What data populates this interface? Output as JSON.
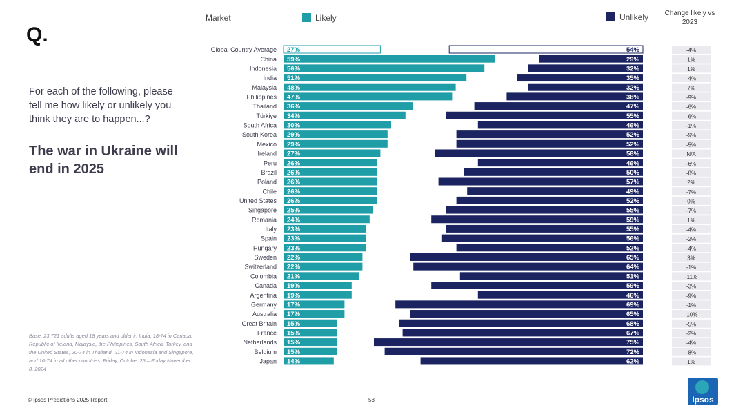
{
  "slide": {
    "q_mark": "Q.",
    "question": "For each of the following, please tell me how likely or unlikely you think they are to happen...?",
    "headline": "The war in Ukraine will end in 2025",
    "base_note": "Base: 23,721 adults aged 18 years and older in India, 18-74 in Canada, Republic of Ireland, Malaysia, the Philippines, South Africa, Turkey, and the United States, 20-74 in Thailand, 21-74 in Indonesia and Singapore, and 16-74 in all other countries. Friday, October 25 – Friday November 8, 2024",
    "footer": "© Ipsos Predictions 2025 Report",
    "page_number": "53",
    "logo_text": "Ipsos"
  },
  "header": {
    "market_label": "Market",
    "likely_label": "Likely",
    "unlikely_label": "Unlikely",
    "change_label": "Change likely vs 2023"
  },
  "colors": {
    "likely": "#1f9ea8",
    "unlikely": "#1b2460",
    "change_bg": "#ebebef"
  },
  "chart_data": {
    "type": "bar",
    "title": "The war in Ukraine will end in 2025",
    "series": [
      {
        "name": "Likely",
        "values": [
          27,
          59,
          56,
          51,
          48,
          47,
          36,
          34,
          30,
          29,
          29,
          27,
          26,
          26,
          26,
          26,
          26,
          25,
          24,
          23,
          23,
          23,
          22,
          22,
          21,
          19,
          19,
          17,
          17,
          15,
          15,
          15,
          15,
          14
        ]
      },
      {
        "name": "Unlikely",
        "values": [
          54,
          29,
          32,
          35,
          32,
          38,
          47,
          55,
          46,
          52,
          52,
          58,
          46,
          50,
          57,
          49,
          52,
          55,
          59,
          55,
          56,
          52,
          65,
          64,
          51,
          59,
          46,
          69,
          65,
          68,
          67,
          75,
          72,
          62
        ]
      }
    ],
    "categories": [
      "Global Country Average",
      "China",
      "Indonesia",
      "India",
      "Malaysia",
      "Philippines",
      "Thailand",
      "Türkiye",
      "South Africa",
      "South Korea",
      "Mexico",
      "Ireland",
      "Peru",
      "Brazil",
      "Poland",
      "Chile",
      "United States",
      "Singapore",
      "Romania",
      "Italy",
      "Spain",
      "Hungary",
      "Sweden",
      "Switzerland",
      "Colombia",
      "Canada",
      "Argentina",
      "Germany",
      "Australia",
      "Great Britain",
      "France",
      "Netherlands",
      "Belgium",
      "Japan"
    ],
    "likely_labels": [
      "27%",
      "59%",
      "56%",
      "51%",
      "48%",
      "47%",
      "36%",
      "34%",
      "30%",
      "29%",
      "29%",
      "27%",
      "26%",
      "26%",
      "26%",
      "26%",
      "26%",
      "25%",
      "24%",
      "23%",
      "23%",
      "23%",
      "22%",
      "22%",
      "21%",
      "19%",
      "19%",
      "17%",
      "17%",
      "15%",
      "15%",
      "15%",
      "15%",
      "14%"
    ],
    "unlikely_labels": [
      "54%",
      "29%",
      "32%",
      "35%",
      "32%",
      "38%",
      "47%",
      "55%",
      "46%",
      "52%",
      "52%",
      "58%",
      "46%",
      "50%",
      "57%",
      "49%",
      "52%",
      "55%",
      "59%",
      "55%",
      "56%",
      "52%",
      "65%",
      "64%",
      "51%",
      "59%",
      "46%",
      "69%",
      "65%",
      "68%",
      "67%",
      "75%",
      "72%",
      "62%"
    ],
    "change_vs_2023": [
      "-4%",
      "1%",
      "1%",
      "-4%",
      "7%",
      "-9%",
      "-6%",
      "-6%",
      "-1%",
      "-9%",
      "-5%",
      "N/A",
      "-6%",
      "-8%",
      "2%",
      "-7%",
      "0%",
      "-7%",
      "1%",
      "-4%",
      "-2%",
      "-4%",
      "3%",
      "-1%",
      "-11%",
      "-3%",
      "-9%",
      "-1%",
      "-10%",
      "-5%",
      "-2%",
      "-4%",
      "-8%",
      "1%"
    ],
    "xlabel": "",
    "ylabel": "",
    "ylim": [
      0,
      100
    ]
  }
}
